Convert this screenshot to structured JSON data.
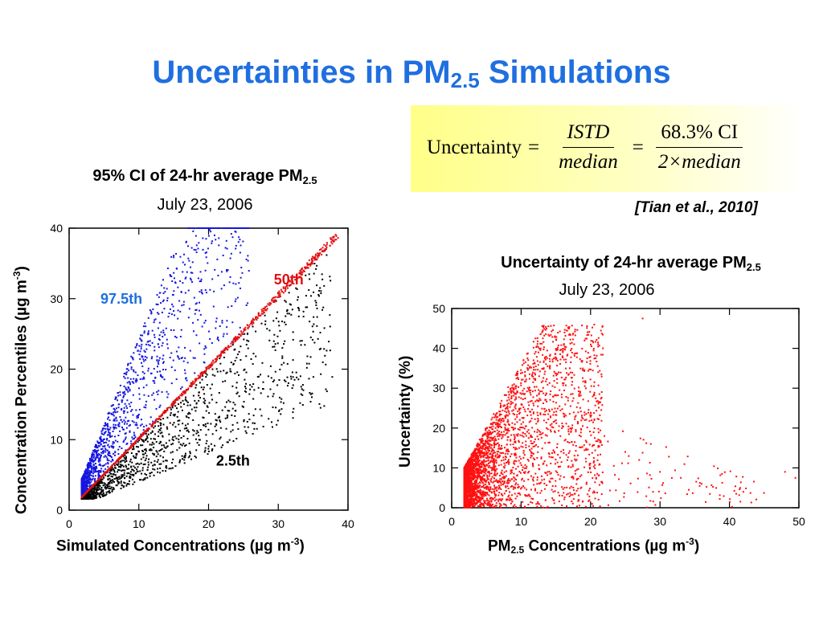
{
  "slide": {
    "title_main": "Uncertainties in PM",
    "title_sub": "2.5",
    "title_end": " Simulations",
    "title_color": "#1f6fe0"
  },
  "formula": {
    "lhs": "Uncertainty",
    "eq": "=",
    "frac1_num": "ISTD",
    "frac1_den": "median",
    "frac2_num": "68.3% CI",
    "frac2_den": "2×median"
  },
  "citation": "[Tian et al., 2010]",
  "chart_data": [
    {
      "type": "scatter",
      "title": "95% CI of 24-hr average PM2.5",
      "title_main": "95% CI of 24-hr average PM",
      "title_sub": "2.5",
      "subtitle": "July 23, 2006",
      "xlabel": "Simulated Concentrations (µg m-3)",
      "xlabel_main": "Simulated Concentrations (µg m",
      "xlabel_sup": "-3",
      "xlabel_end": ")",
      "ylabel": "Concentration Percentiles (µg m-3)",
      "ylabel_main": "Concentration Percentiles (µg m",
      "ylabel_sup": "-3",
      "ylabel_end": ")",
      "xlim": [
        0,
        40
      ],
      "ylim": [
        0,
        40
      ],
      "xticks": [
        "0",
        "10",
        "20",
        "30",
        "40"
      ],
      "yticks": [
        "0",
        "10",
        "20",
        "30",
        "40"
      ],
      "grid": false,
      "series": [
        {
          "name": "97.5th",
          "color": "#1515e0",
          "ratio_range": [
            1.0,
            2.4
          ],
          "x_range": [
            1.8,
            27
          ],
          "n": 1300
        },
        {
          "name": "50th",
          "color": "#e01010",
          "ratio_range": [
            1.0,
            1.03
          ],
          "x_range": [
            1.8,
            38.5
          ],
          "n": 800
        },
        {
          "name": "2.5th",
          "color": "#000000",
          "ratio_range": [
            0.38,
            1.0
          ],
          "x_range": [
            1.8,
            38
          ],
          "n": 1300
        }
      ],
      "annotations": [
        {
          "text": "97.5th",
          "color": "#1f6fe0",
          "x": 7.5,
          "y": 29.3
        },
        {
          "text": "50th",
          "color": "#e01010",
          "x": 31.5,
          "y": 32
        },
        {
          "text": "2.5th",
          "color": "#000000",
          "x": 23.5,
          "y": 6.3
        }
      ]
    },
    {
      "type": "scatter",
      "title": "Uncertainty of 24-hr average PM2.5",
      "title_main": "Uncertainty of 24-hr average PM",
      "title_sub": "2.5",
      "subtitle": "July 23, 2006",
      "xlabel": "PM2.5 Concentrations (µg m-3)",
      "xlabel_pre": "PM",
      "xlabel_sub": "2.5",
      "xlabel_main": " Concentrations (µg m",
      "xlabel_sup": "-3",
      "xlabel_end": ")",
      "ylabel": "Uncertainty (%)",
      "xlim": [
        0,
        50
      ],
      "ylim": [
        0,
        50
      ],
      "xticks": [
        "0",
        "10",
        "20",
        "30",
        "40",
        "50"
      ],
      "yticks": [
        "0",
        "10",
        "20",
        "30",
        "40",
        "50"
      ],
      "grid": false,
      "series": [
        {
          "color": "#ff1010",
          "x_range": [
            1.8,
            50
          ],
          "y_range": [
            0,
            48
          ],
          "n": 3600
        }
      ],
      "outliers": [
        [
          27.5,
          47.5
        ],
        [
          48,
          9
        ],
        [
          49.5,
          7.5
        ],
        [
          42,
          4
        ],
        [
          36,
          6
        ],
        [
          33,
          7.5
        ],
        [
          30,
          9
        ],
        [
          29,
          4
        ],
        [
          27,
          12
        ],
        [
          25,
          14
        ],
        [
          22,
          18
        ]
      ]
    }
  ]
}
